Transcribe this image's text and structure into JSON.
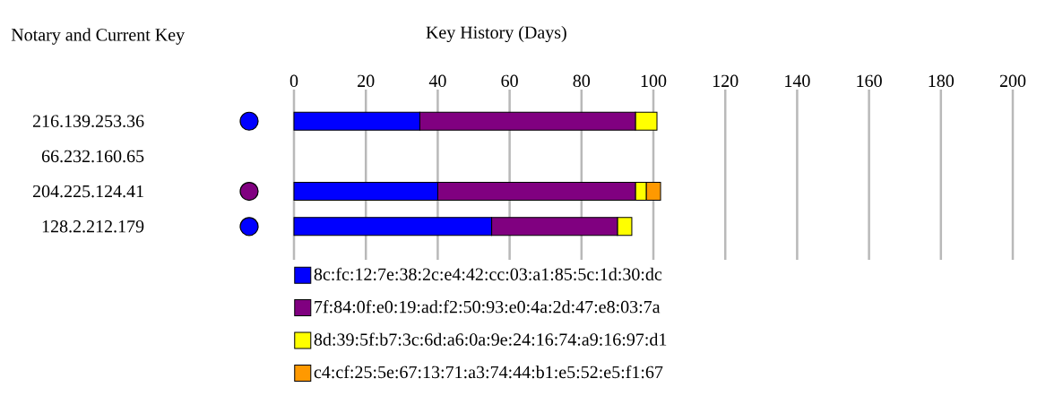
{
  "chart_data": {
    "type": "bar",
    "title": "Key History (Days)",
    "annotations": [
      "Notary and Current Key"
    ],
    "categories": [
      "216.139.253.36",
      "66.232.160.65",
      "204.225.124.41",
      "128.2.212.179"
    ],
    "orientation": "horizontal",
    "stacked": true,
    "xlim": [
      0,
      200
    ],
    "xticks": [
      0,
      20,
      40,
      60,
      80,
      100,
      120,
      140,
      160,
      180,
      200
    ],
    "grid": "x",
    "legend": "bottom",
    "series": [
      {
        "name": "8c:fc:12:7e:38:2c:e4:42:cc:03:a1:85:5c:1d:30:dc",
        "color": "#0000ff",
        "values": [
          35,
          null,
          40,
          55
        ]
      },
      {
        "name": "7f:84:0f:e0:19:ad:f2:50:93:e0:4a:2d:47:e8:03:7a",
        "color": "#800080",
        "values": [
          60,
          null,
          55,
          35
        ]
      },
      {
        "name": "8d:39:5f:b7:3c:6d:a6:0a:9e:24:16:74:a9:16:97:d1",
        "color": "#ffff00",
        "values": [
          6,
          null,
          3,
          4
        ]
      },
      {
        "name": "c4:cf:25:5e:67:13:71:a3:74:44:b1:e5:52:e5:f1:67",
        "color": "#ff9900",
        "values": [
          0,
          null,
          4,
          0
        ]
      }
    ]
  }
}
